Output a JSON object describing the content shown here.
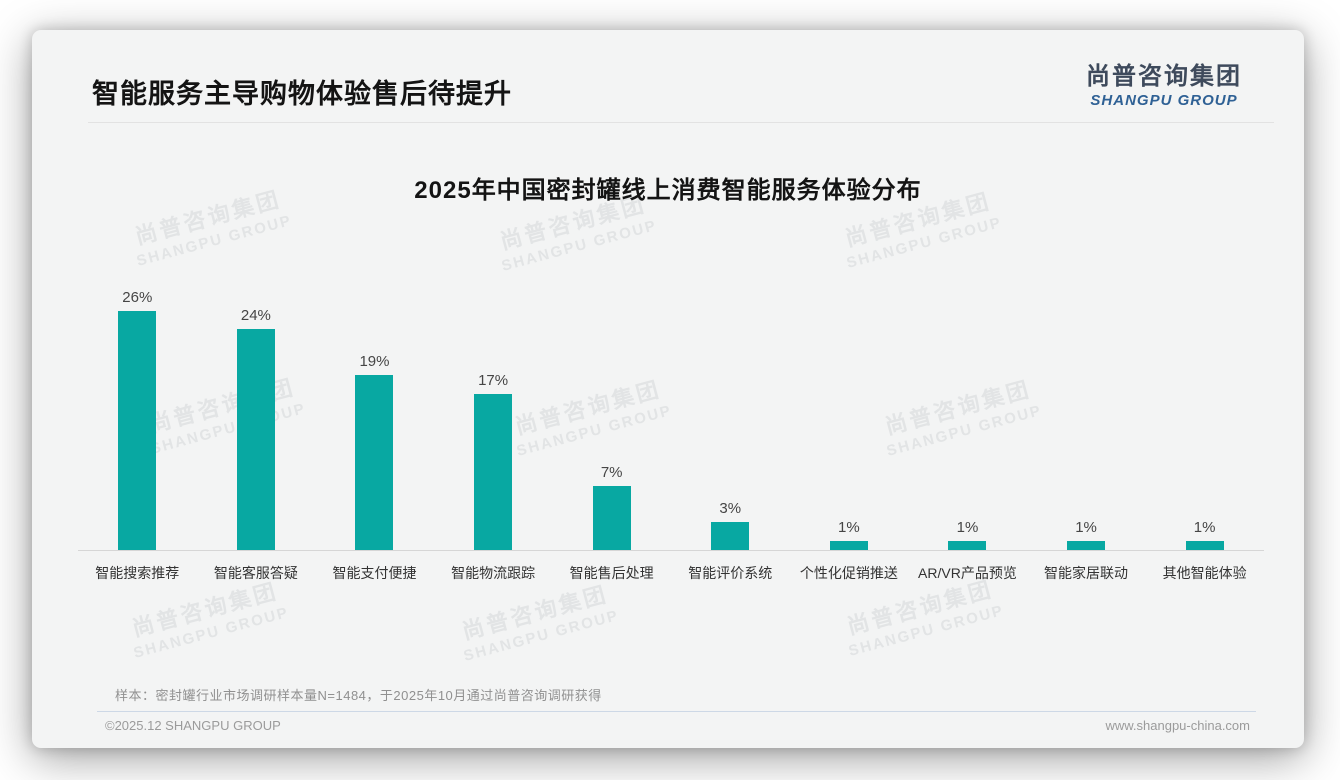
{
  "header": {
    "title": "智能服务主导购物体验售后待提升",
    "logo": {
      "cn": "尚普咨询集团",
      "en": "SHANGPU GROUP"
    }
  },
  "chart_data": {
    "type": "bar",
    "title": "2025年中国密封罐线上消费智能服务体验分布",
    "categories": [
      "智能搜索推荐",
      "智能客服答疑",
      "智能支付便捷",
      "智能物流跟踪",
      "智能售后处理",
      "智能评价系统",
      "个性化促销推送",
      "AR/VR产品预览",
      "智能家居联动",
      "其他智能体验"
    ],
    "values": [
      26,
      24,
      19,
      17,
      7,
      3,
      1,
      1,
      1,
      1
    ],
    "value_labels": [
      "26%",
      "24%",
      "19%",
      "17%",
      "7%",
      "3%",
      "1%",
      "1%",
      "1%",
      "1%"
    ],
    "unit": "%",
    "bar_color": "#08a8a2",
    "ylim": [
      0,
      26
    ],
    "grid": false,
    "legend": false,
    "xlabel": "",
    "ylabel": ""
  },
  "footnote": "样本：密封罐行业市场调研样本量N=1484，于2025年10月通过尚普咨询调研获得",
  "footer": {
    "copyright": "©2025.12 SHANGPU GROUP",
    "website": "www.shangpu-china.com"
  },
  "watermark": {
    "line1": "尚普咨询集团",
    "line2": "SHANGPU GROUP"
  }
}
